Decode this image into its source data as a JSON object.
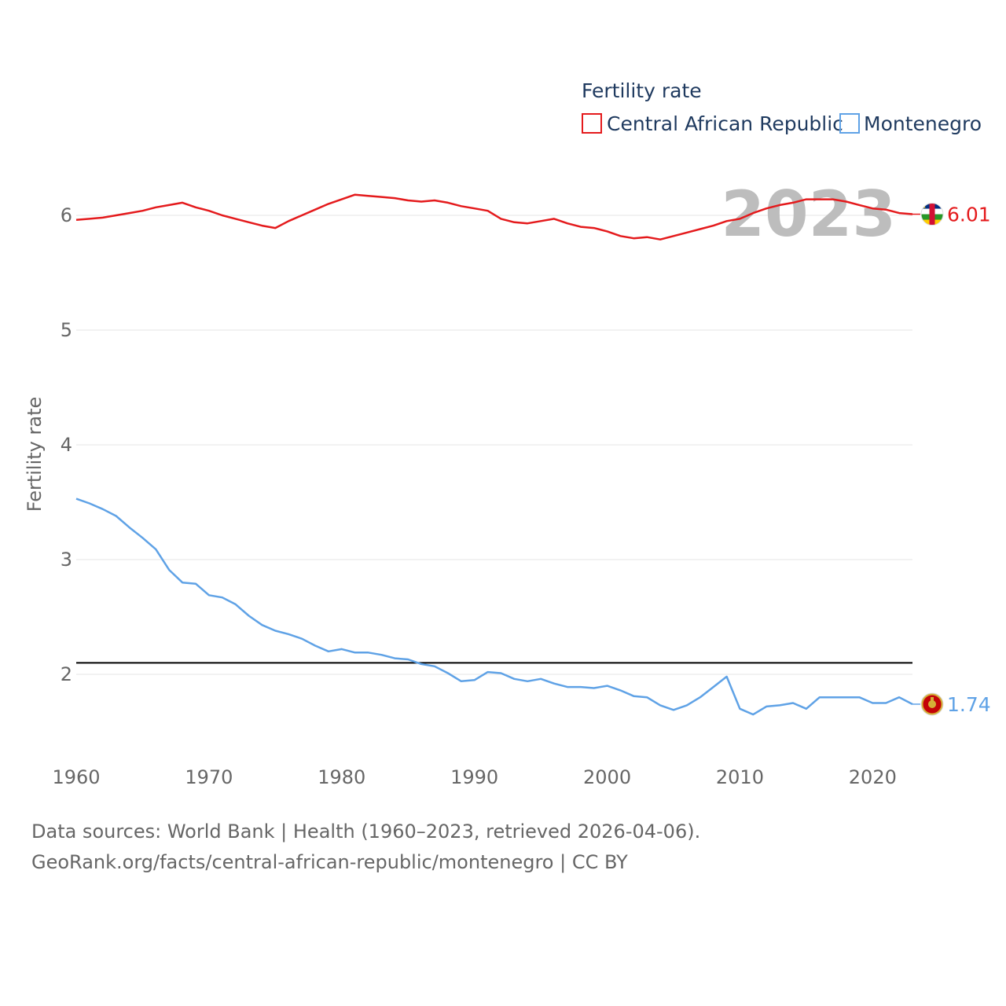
{
  "chart_data": {
    "type": "line",
    "title": "Fertility rate",
    "ylabel": "Fertility rate",
    "xlabel": "",
    "xlim": [
      1960,
      2023
    ],
    "ylim": [
      1.5,
      6.4
    ],
    "yticks": [
      2,
      3,
      4,
      5,
      6
    ],
    "xticks": [
      1960,
      1970,
      1980,
      1990,
      2000,
      2010,
      2020
    ],
    "current_year": "2023",
    "reference_line": 2.1,
    "x": [
      1960,
      1961,
      1962,
      1963,
      1964,
      1965,
      1966,
      1967,
      1968,
      1969,
      1970,
      1971,
      1972,
      1973,
      1974,
      1975,
      1976,
      1977,
      1978,
      1979,
      1980,
      1981,
      1982,
      1983,
      1984,
      1985,
      1986,
      1987,
      1988,
      1989,
      1990,
      1991,
      1992,
      1993,
      1994,
      1995,
      1996,
      1997,
      1998,
      1999,
      2000,
      2001,
      2002,
      2003,
      2004,
      2005,
      2006,
      2007,
      2008,
      2009,
      2010,
      2011,
      2012,
      2013,
      2014,
      2015,
      2016,
      2017,
      2018,
      2019,
      2020,
      2021,
      2022,
      2023
    ],
    "series": [
      {
        "name": "Central African Republic",
        "color": "#e41a1c",
        "end_label": "6.01",
        "flag": "central-african-republic-flag-icon",
        "values": [
          5.96,
          5.97,
          5.98,
          6.0,
          6.02,
          6.04,
          6.07,
          6.09,
          6.11,
          6.07,
          6.04,
          6.0,
          5.97,
          5.94,
          5.91,
          5.89,
          5.95,
          6.0,
          6.05,
          6.1,
          6.14,
          6.18,
          6.17,
          6.16,
          6.15,
          6.13,
          6.12,
          6.13,
          6.11,
          6.08,
          6.06,
          6.04,
          5.97,
          5.94,
          5.93,
          5.95,
          5.97,
          5.93,
          5.9,
          5.89,
          5.86,
          5.82,
          5.8,
          5.81,
          5.79,
          5.82,
          5.85,
          5.88,
          5.91,
          5.95,
          5.97,
          6.02,
          6.06,
          6.09,
          6.11,
          6.14,
          6.14,
          6.14,
          6.12,
          6.09,
          6.06,
          6.05,
          6.02,
          6.01
        ]
      },
      {
        "name": "Montenegro",
        "color": "#5fa2e6",
        "end_label": "1.74",
        "flag": "montenegro-flag-icon",
        "values": [
          3.53,
          3.49,
          3.44,
          3.38,
          3.28,
          3.19,
          3.09,
          2.91,
          2.8,
          2.79,
          2.69,
          2.67,
          2.61,
          2.51,
          2.43,
          2.38,
          2.35,
          2.31,
          2.25,
          2.2,
          2.22,
          2.19,
          2.19,
          2.17,
          2.14,
          2.13,
          2.09,
          2.07,
          2.01,
          1.94,
          1.95,
          2.02,
          2.01,
          1.96,
          1.94,
          1.96,
          1.92,
          1.89,
          1.89,
          1.88,
          1.9,
          1.86,
          1.81,
          1.8,
          1.73,
          1.69,
          1.73,
          1.8,
          1.89,
          1.98,
          1.7,
          1.65,
          1.72,
          1.73,
          1.75,
          1.7,
          1.8,
          1.8,
          1.8,
          1.8,
          1.75,
          1.75,
          1.8,
          1.74
        ]
      }
    ]
  },
  "source": {
    "line1": "Data sources: World Bank | Health (1960–2023, retrieved 2026-04-06).",
    "line2": "GeoRank.org/facts/central-african-republic/montenegro | CC BY"
  }
}
